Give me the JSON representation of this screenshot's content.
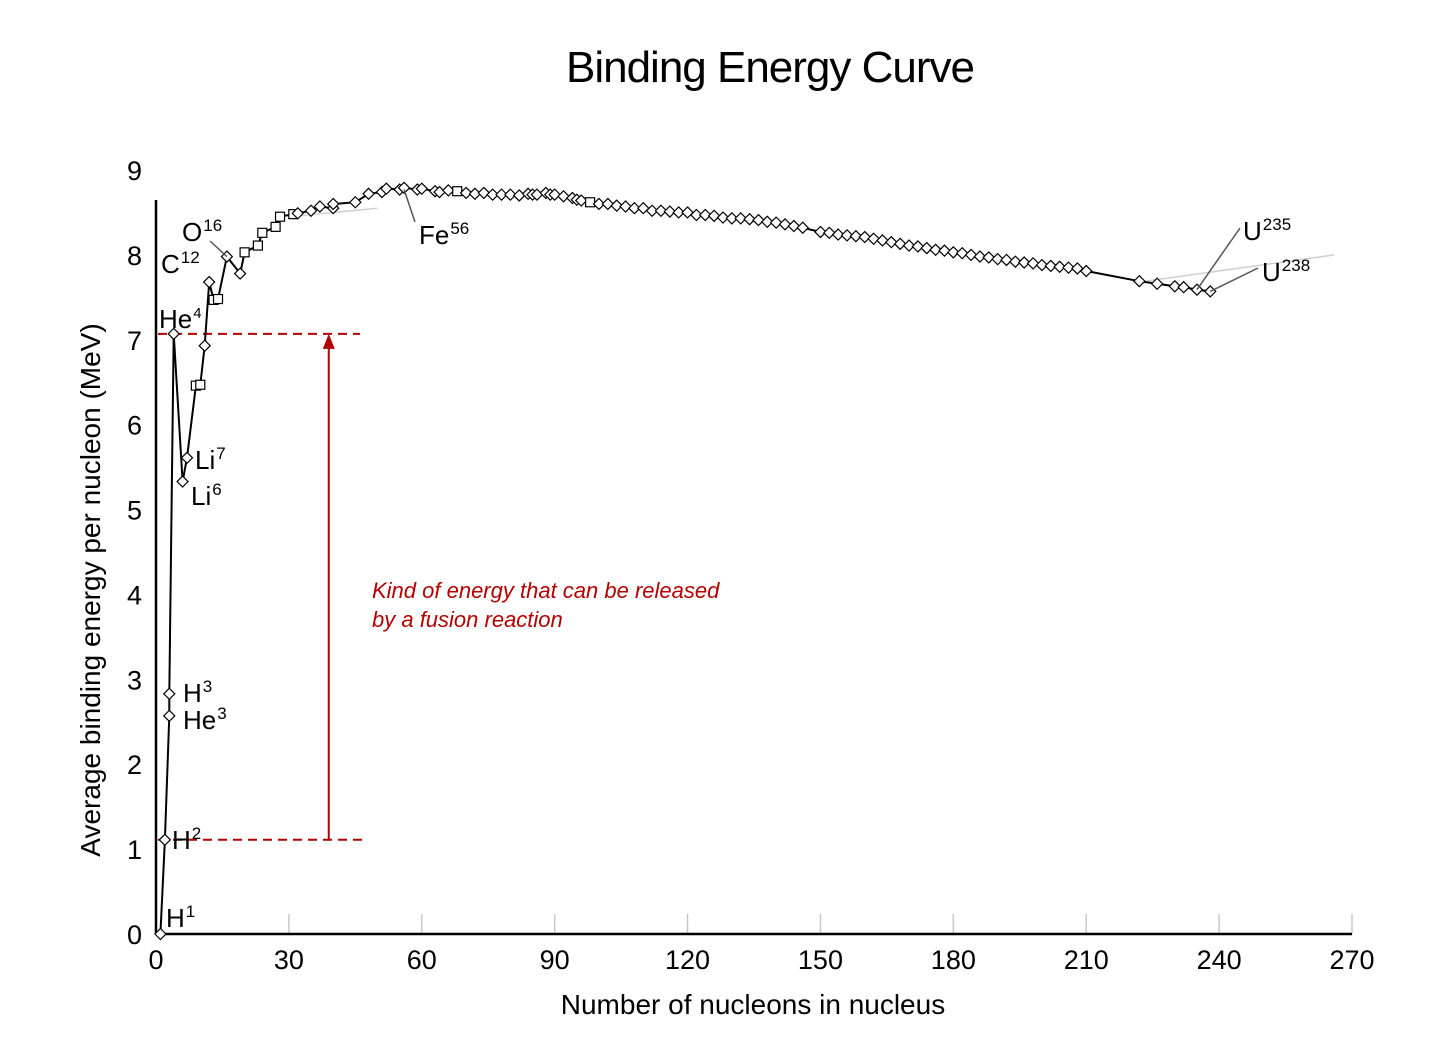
{
  "chart_data": {
    "type": "scatter",
    "title": "Binding Energy Curve",
    "xlabel": "Number of nucleons in nucleus",
    "ylabel": "Average binding energy per nucleon (MeV)",
    "xlim": [
      0,
      270
    ],
    "ylim": [
      0,
      9
    ],
    "xticks": [
      "0",
      "30",
      "60",
      "90",
      "120",
      "150",
      "180",
      "210",
      "240",
      "270"
    ],
    "yticks": [
      "0",
      "1",
      "2",
      "3",
      "4",
      "5",
      "6",
      "7",
      "8",
      "9"
    ],
    "series": [
      {
        "name": "Binding energy per nucleon",
        "points": [
          [
            1,
            0.0
          ],
          [
            2,
            1.11
          ],
          [
            3,
            2.57
          ],
          [
            3,
            2.83
          ],
          [
            4,
            7.07
          ],
          [
            6,
            5.33
          ],
          [
            7,
            5.61
          ],
          [
            9,
            6.46
          ],
          [
            10,
            6.47
          ],
          [
            11,
            6.93
          ],
          [
            12,
            7.68
          ],
          [
            13,
            7.47
          ],
          [
            14,
            7.48
          ],
          [
            16,
            7.98
          ],
          [
            19,
            7.78
          ],
          [
            20,
            8.03
          ],
          [
            23,
            8.11
          ],
          [
            24,
            8.26
          ],
          [
            27,
            8.33
          ],
          [
            28,
            8.45
          ],
          [
            31,
            8.48
          ],
          [
            32,
            8.49
          ],
          [
            35,
            8.52
          ],
          [
            37,
            8.57
          ],
          [
            40,
            8.55
          ],
          [
            40,
            8.6
          ],
          [
            45,
            8.62
          ],
          [
            48,
            8.72
          ],
          [
            51,
            8.74
          ],
          [
            52,
            8.78
          ],
          [
            55,
            8.77
          ],
          [
            56,
            8.79
          ],
          [
            59,
            8.77
          ],
          [
            60,
            8.78
          ],
          [
            63,
            8.75
          ],
          [
            64,
            8.74
          ],
          [
            66,
            8.76
          ],
          [
            68,
            8.75
          ],
          [
            70,
            8.73
          ],
          [
            72,
            8.72
          ],
          [
            74,
            8.73
          ],
          [
            76,
            8.71
          ],
          [
            78,
            8.71
          ],
          [
            80,
            8.71
          ],
          [
            82,
            8.7
          ],
          [
            84,
            8.72
          ],
          [
            85,
            8.71
          ],
          [
            86,
            8.71
          ],
          [
            88,
            8.73
          ],
          [
            89,
            8.71
          ],
          [
            90,
            8.71
          ],
          [
            92,
            8.69
          ],
          [
            94,
            8.67
          ],
          [
            95,
            8.65
          ],
          [
            96,
            8.64
          ],
          [
            98,
            8.62
          ],
          [
            100,
            8.6
          ],
          [
            102,
            8.6
          ],
          [
            104,
            8.58
          ],
          [
            106,
            8.57
          ],
          [
            108,
            8.55
          ],
          [
            110,
            8.55
          ],
          [
            112,
            8.52
          ],
          [
            114,
            8.52
          ],
          [
            116,
            8.51
          ],
          [
            118,
            8.5
          ],
          [
            120,
            8.5
          ],
          [
            122,
            8.47
          ],
          [
            124,
            8.47
          ],
          [
            126,
            8.46
          ],
          [
            128,
            8.44
          ],
          [
            130,
            8.43
          ],
          [
            132,
            8.43
          ],
          [
            134,
            8.42
          ],
          [
            136,
            8.41
          ],
          [
            138,
            8.39
          ],
          [
            140,
            8.38
          ],
          [
            142,
            8.36
          ],
          [
            144,
            8.34
          ],
          [
            146,
            8.32
          ],
          [
            150,
            8.27
          ],
          [
            152,
            8.26
          ],
          [
            154,
            8.24
          ],
          [
            156,
            8.23
          ],
          [
            158,
            8.22
          ],
          [
            160,
            8.21
          ],
          [
            162,
            8.19
          ],
          [
            164,
            8.17
          ],
          [
            166,
            8.15
          ],
          [
            168,
            8.13
          ],
          [
            170,
            8.11
          ],
          [
            172,
            8.1
          ],
          [
            174,
            8.08
          ],
          [
            176,
            8.06
          ],
          [
            178,
            8.05
          ],
          [
            180,
            8.03
          ],
          [
            182,
            8.02
          ],
          [
            184,
            8.0
          ],
          [
            186,
            7.98
          ],
          [
            188,
            7.97
          ],
          [
            190,
            7.95
          ],
          [
            192,
            7.94
          ],
          [
            194,
            7.92
          ],
          [
            196,
            7.91
          ],
          [
            198,
            7.9
          ],
          [
            200,
            7.88
          ],
          [
            202,
            7.87
          ],
          [
            204,
            7.86
          ],
          [
            206,
            7.85
          ],
          [
            208,
            7.84
          ],
          [
            210,
            7.81
          ],
          [
            222,
            7.69
          ],
          [
            226,
            7.66
          ],
          [
            230,
            7.63
          ],
          [
            232,
            7.62
          ],
          [
            235,
            7.59
          ],
          [
            238,
            7.57
          ]
        ]
      }
    ],
    "isotope_labels": [
      {
        "base": "H",
        "mass": "1"
      },
      {
        "base": "H",
        "mass": "2"
      },
      {
        "base": "H",
        "mass": "3"
      },
      {
        "base": "He",
        "mass": "3"
      },
      {
        "base": "He",
        "mass": "4"
      },
      {
        "base": "Li",
        "mass": "6"
      },
      {
        "base": "Li",
        "mass": "7"
      },
      {
        "base": "C",
        "mass": "12"
      },
      {
        "base": "O",
        "mass": "16"
      },
      {
        "base": "Fe",
        "mass": "56"
      },
      {
        "base": "U",
        "mass": "235"
      },
      {
        "base": "U",
        "mass": "238"
      }
    ],
    "annotation": {
      "lines": [
        "Kind of energy that can be released",
        "by a fusion reaction"
      ],
      "from_mev": 1.11,
      "to_mev": 7.07,
      "arrow_x": 39,
      "color": "#b30000"
    }
  }
}
